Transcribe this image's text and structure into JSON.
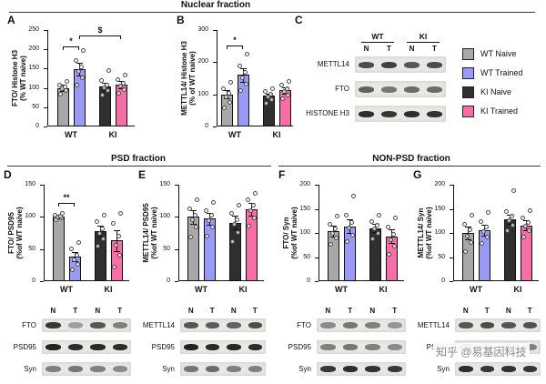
{
  "watermark": "知乎 @易基因科技",
  "sections": {
    "nuclear": "Nuclear fraction",
    "psd": "PSD fraction",
    "nonpsd": "NON-PSD fraction"
  },
  "legend": {
    "items": [
      {
        "label": "WT Naive",
        "color": "#a8a8a8"
      },
      {
        "label": "WT Trained",
        "color": "#9a9af5"
      },
      {
        "label": "KI Naive",
        "color": "#2f2f2f"
      },
      {
        "label": "KI Trained",
        "color": "#f56ea5"
      }
    ]
  },
  "chart_data": [
    {
      "id": "A",
      "letter": "A",
      "type": "bar",
      "ylabel_lines": [
        "FTO/ Histone H3",
        "(% WT naive)"
      ],
      "ylim": [
        0,
        250
      ],
      "yticks": [
        0,
        50,
        100,
        150,
        200,
        250
      ],
      "categories": [
        "WT",
        "KI"
      ],
      "bars": [
        {
          "label": "WT Naive",
          "color": "#a8a8a8",
          "value": 100,
          "error": 8,
          "points": [
            84,
            92,
            98,
            102,
            108,
            116
          ]
        },
        {
          "label": "WT Trained",
          "color": "#9a9af5",
          "value": 148,
          "error": 17,
          "points": [
            108,
            126,
            142,
            155,
            172,
            196
          ]
        },
        {
          "label": "KI Naive",
          "color": "#2f2f2f",
          "value": 104,
          "error": 10,
          "points": [
            82,
            94,
            101,
            108,
            118,
            146
          ]
        },
        {
          "label": "KI Trained",
          "color": "#f56ea5",
          "value": 108,
          "error": 9,
          "points": [
            86,
            96,
            104,
            112,
            122,
            134
          ]
        }
      ],
      "significance": [
        {
          "from": 0,
          "to": 1,
          "label": "*",
          "y": 208
        },
        {
          "from": 1,
          "to": 3,
          "label": "$",
          "y": 237
        }
      ]
    },
    {
      "id": "B",
      "letter": "B",
      "type": "bar",
      "ylabel_lines": [
        "METTL14/ Histone H3",
        "(% of WT naive)"
      ],
      "ylim": [
        0,
        300
      ],
      "yticks": [
        0,
        100,
        200,
        300
      ],
      "categories": [
        "WT",
        "KI"
      ],
      "bars": [
        {
          "label": "WT Naive",
          "color": "#a8a8a8",
          "value": 100,
          "error": 13,
          "points": [
            58,
            76,
            92,
            102,
            118,
            138
          ]
        },
        {
          "label": "WT Trained",
          "color": "#9a9af5",
          "value": 160,
          "error": 22,
          "points": [
            112,
            132,
            152,
            168,
            188,
            224
          ]
        },
        {
          "label": "KI Naive",
          "color": "#2f2f2f",
          "value": 95,
          "error": 8,
          "points": [
            72,
            84,
            93,
            100,
            108,
            118
          ]
        },
        {
          "label": "KI Trained",
          "color": "#f56ea5",
          "value": 112,
          "error": 10,
          "points": [
            86,
            98,
            108,
            118,
            128,
            140
          ]
        }
      ],
      "significance": [
        {
          "from": 0,
          "to": 1,
          "label": "*",
          "y": 252
        }
      ]
    },
    {
      "id": "D",
      "letter": "D",
      "type": "bar",
      "ylabel_lines": [
        "FTO/ PSD95",
        "(%of WT naive)"
      ],
      "ylim": [
        0,
        150
      ],
      "yticks": [
        0,
        50,
        100,
        150
      ],
      "categories": [
        "WT",
        "KI"
      ],
      "bars": [
        {
          "label": "WT Naive",
          "color": "#a8a8a8",
          "value": 100,
          "error": 3,
          "points": [
            95,
            98,
            100,
            101,
            103,
            105
          ]
        },
        {
          "label": "WT Trained",
          "color": "#9a9af5",
          "value": 38,
          "error": 7,
          "points": [
            18,
            26,
            33,
            41,
            50,
            60
          ]
        },
        {
          "label": "KI Naive",
          "color": "#2f2f2f",
          "value": 78,
          "error": 9,
          "points": [
            54,
            66,
            74,
            82,
            92,
            102
          ]
        },
        {
          "label": "KI Trained",
          "color": "#f56ea5",
          "value": 63,
          "error": 16,
          "points": [
            22,
            40,
            56,
            70,
            90,
            106
          ]
        }
      ],
      "significance": [
        {
          "from": 0,
          "to": 1,
          "label": "**",
          "y": 122
        }
      ]
    },
    {
      "id": "E",
      "letter": "E",
      "type": "bar",
      "ylabel_lines": [
        "METTL14/ PSD95",
        "(%of WT naive)"
      ],
      "ylim": [
        0,
        150
      ],
      "yticks": [
        0,
        50,
        100,
        150
      ],
      "categories": [
        "WT",
        "KI"
      ],
      "bars": [
        {
          "label": "WT Naive",
          "color": "#a8a8a8",
          "value": 100,
          "error": 11,
          "points": [
            68,
            84,
            95,
            103,
            112,
            126
          ]
        },
        {
          "label": "WT Trained",
          "color": "#9a9af5",
          "value": 97,
          "error": 9,
          "points": [
            70,
            84,
            94,
            102,
            110,
            122
          ]
        },
        {
          "label": "KI Naive",
          "color": "#2f2f2f",
          "value": 91,
          "error": 11,
          "points": [
            62,
            76,
            88,
            96,
            106,
            118
          ]
        },
        {
          "label": "KI Trained",
          "color": "#f56ea5",
          "value": 112,
          "error": 10,
          "points": [
            86,
            98,
            110,
            118,
            126,
            136
          ]
        }
      ],
      "significance": []
    },
    {
      "id": "F",
      "letter": "F",
      "type": "bar",
      "ylabel_lines": [
        "FTO/ Syn",
        "(%of WT naive)"
      ],
      "ylim": [
        0,
        200
      ],
      "yticks": [
        0,
        50,
        100,
        150,
        200
      ],
      "categories": [
        "WT",
        "KI"
      ],
      "bars": [
        {
          "label": "WT Naive",
          "color": "#a8a8a8",
          "value": 104,
          "error": 11,
          "points": [
            76,
            90,
            100,
            108,
            118,
            134
          ]
        },
        {
          "label": "WT Trained",
          "color": "#9a9af5",
          "value": 114,
          "error": 14,
          "points": [
            82,
            96,
            110,
            122,
            136,
            176
          ]
        },
        {
          "label": "KI Naive",
          "color": "#2f2f2f",
          "value": 110,
          "error": 9,
          "points": [
            88,
            100,
            108,
            116,
            124,
            136
          ]
        },
        {
          "label": "KI Trained",
          "color": "#f56ea5",
          "value": 93,
          "error": 14,
          "points": [
            56,
            72,
            86,
            98,
            112,
            132
          ]
        }
      ],
      "significance": []
    },
    {
      "id": "G",
      "letter": "G",
      "type": "bar",
      "ylabel_lines": [
        "METTL14/ Syn",
        "(%of WT naive)"
      ],
      "ylim": [
        0,
        200
      ],
      "yticks": [
        0,
        50,
        100,
        150,
        200
      ],
      "categories": [
        "WT",
        "KI"
      ],
      "bars": [
        {
          "label": "WT Naive",
          "color": "#a8a8a8",
          "value": 100,
          "error": 14,
          "points": [
            62,
            80,
            94,
            106,
            118,
            136
          ]
        },
        {
          "label": "WT Trained",
          "color": "#9a9af5",
          "value": 106,
          "error": 11,
          "points": [
            78,
            92,
            102,
            112,
            124,
            142
          ]
        },
        {
          "label": "KI Naive",
          "color": "#2f2f2f",
          "value": 128,
          "error": 9,
          "points": [
            104,
            116,
            126,
            134,
            144,
            188
          ]
        },
        {
          "label": "KI Trained",
          "color": "#f56ea5",
          "value": 116,
          "error": 10,
          "points": [
            92,
            104,
            114,
            122,
            132,
            146
          ]
        }
      ],
      "significance": []
    }
  ],
  "blots": [
    {
      "id": "C",
      "letter": "C",
      "groups": [
        "WT",
        "KI"
      ],
      "lanes": [
        "N",
        "T",
        "N",
        "T"
      ],
      "rows": [
        {
          "label": "METTL14",
          "bands": [
            0.75,
            0.8,
            0.7,
            0.75
          ]
        },
        {
          "label": "FTO",
          "bands": [
            0.65,
            0.55,
            0.6,
            0.6
          ]
        },
        {
          "label": "HISTONE H3",
          "bands": [
            0.9,
            0.85,
            0.9,
            0.88
          ]
        }
      ]
    },
    {
      "id": "D",
      "lanes": [
        "N",
        "T",
        "N",
        "T"
      ],
      "rows": [
        {
          "label": "FTO",
          "bands": [
            0.85,
            0.35,
            0.7,
            0.5
          ]
        },
        {
          "label": "PSD95",
          "bands": [
            0.95,
            0.9,
            0.92,
            0.9
          ]
        },
        {
          "label": "Syn",
          "bands": [
            0.5,
            0.55,
            0.5,
            0.45
          ]
        }
      ]
    },
    {
      "id": "E",
      "lanes": [
        "N",
        "T",
        "N",
        "T"
      ],
      "rows": [
        {
          "label": "METTL14",
          "bands": [
            0.7,
            0.68,
            0.65,
            0.75
          ]
        },
        {
          "label": "PSD95",
          "bands": [
            0.95,
            0.92,
            0.93,
            0.9
          ]
        },
        {
          "label": "Syn",
          "bands": [
            0.55,
            0.6,
            0.5,
            0.5
          ]
        }
      ]
    },
    {
      "id": "F",
      "lanes": [
        "N",
        "T",
        "N",
        "T"
      ],
      "rows": [
        {
          "label": "FTO",
          "bands": [
            0.45,
            0.55,
            0.5,
            0.4
          ]
        },
        {
          "label": "PSD95",
          "bands": [
            0.5,
            0.55,
            0.5,
            0.45
          ]
        },
        {
          "label": "Syn",
          "bands": [
            0.85,
            0.9,
            0.88,
            0.85
          ]
        }
      ]
    },
    {
      "id": "G",
      "lanes": [
        "N",
        "T",
        "N",
        "T"
      ],
      "rows": [
        {
          "label": "METTL14",
          "bands": [
            0.7,
            0.75,
            0.7,
            0.72
          ]
        },
        {
          "label": "PSD95",
          "bands": [
            0.6,
            0.55,
            0.5,
            0.5
          ]
        },
        {
          "label": "Syn",
          "bands": [
            0.9,
            0.85,
            0.88,
            0.86
          ]
        }
      ]
    }
  ]
}
